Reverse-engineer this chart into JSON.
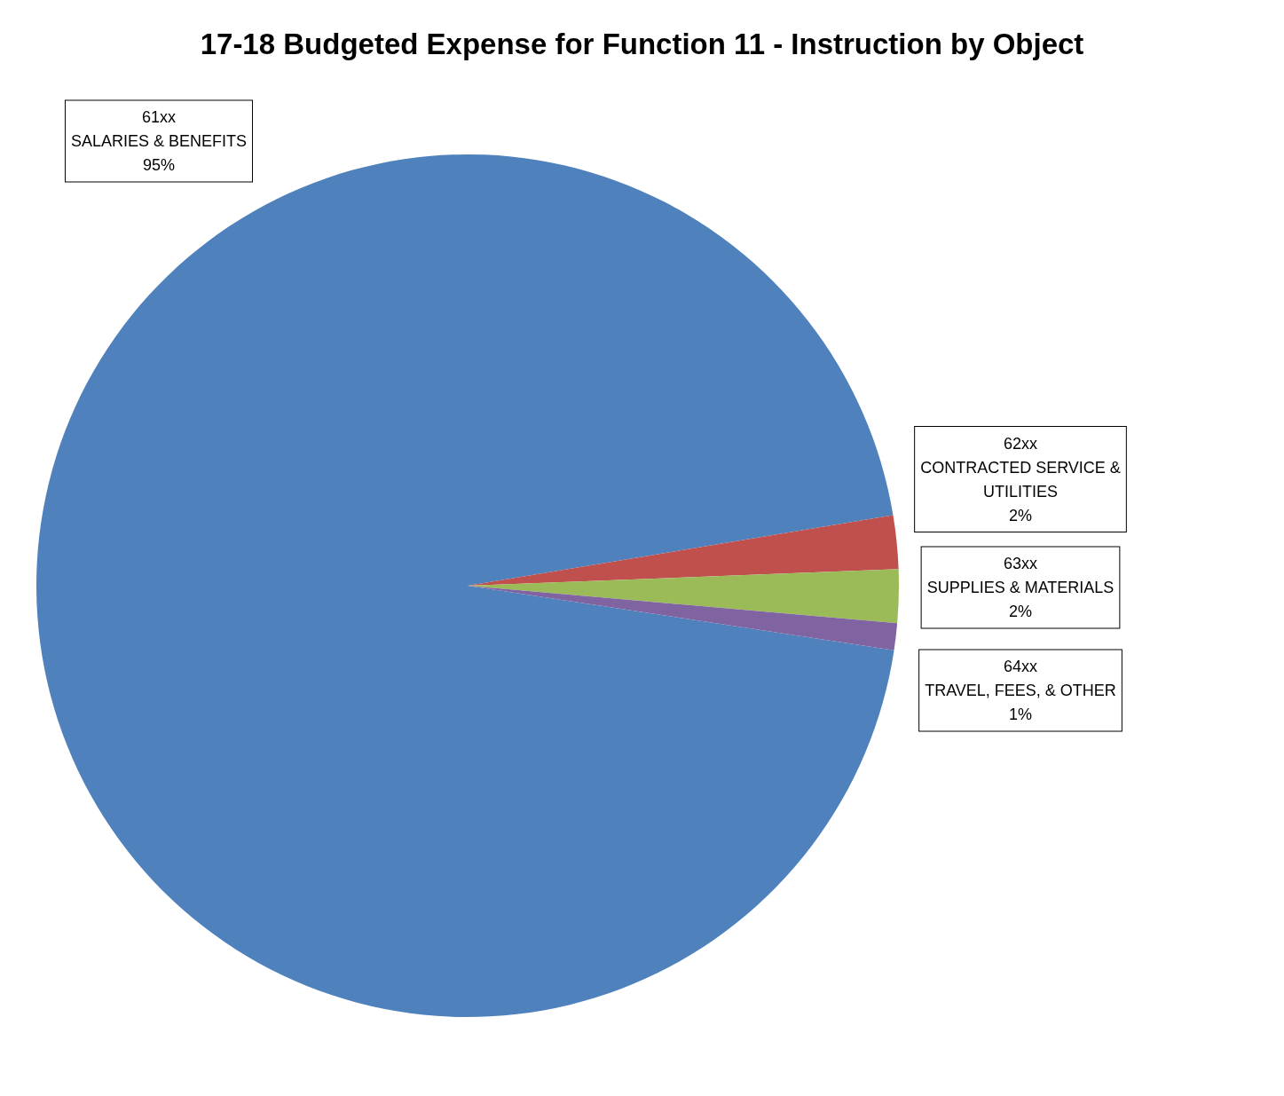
{
  "chart_data": {
    "type": "pie",
    "title": "17-18 Budgeted Expense for Function 11 - Instruction by Object",
    "categories": [
      "61xx\nSALARIES & BENEFITS",
      "62xx\nCONTRACTED SERVICE &\nUTILITIES",
      "63xx\nSUPPLIES & MATERIALS",
      "64xx\nTRAVEL, FEES, & OTHER"
    ],
    "values": [
      95,
      2,
      2,
      1
    ],
    "value_labels": [
      "95%",
      "2%",
      "2%",
      "1%"
    ],
    "colors": [
      "#4f81bd",
      "#c0504d",
      "#9bbb59",
      "#8064a2"
    ]
  }
}
